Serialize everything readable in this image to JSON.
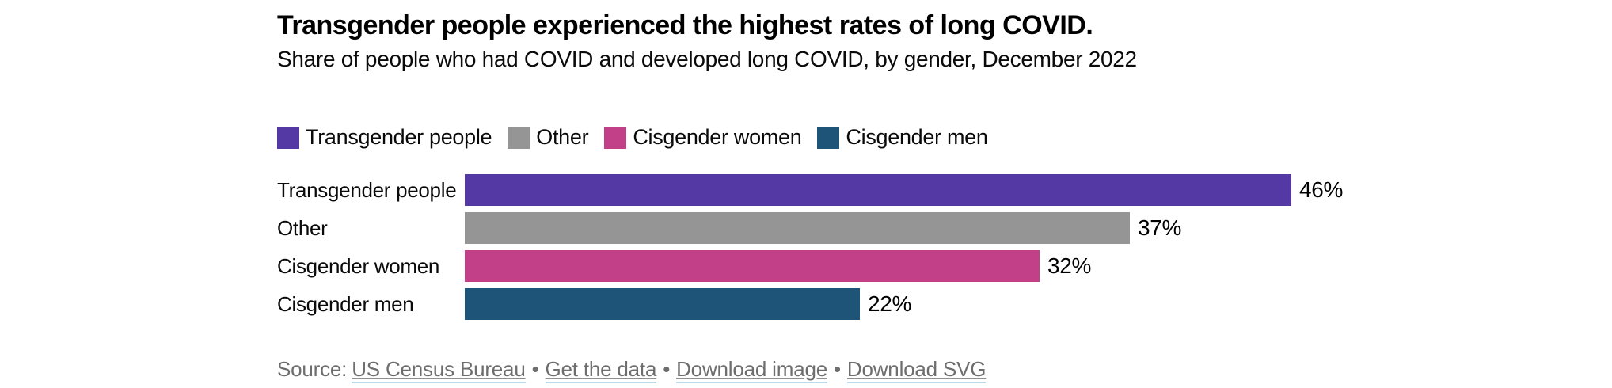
{
  "header": {
    "title": "Transgender people experienced the highest rates of long COVID.",
    "subtitle": "Share of people who had COVID and developed long COVID, by gender, December 2022"
  },
  "chart_data": {
    "type": "bar",
    "orientation": "horizontal",
    "title": "Transgender people experienced the highest rates of long COVID.",
    "subtitle": "Share of people who had COVID and developed long COVID, by gender, December 2022",
    "categories": [
      "Transgender people",
      "Other",
      "Cisgender women",
      "Cisgender men"
    ],
    "values": [
      46,
      37,
      32,
      22
    ],
    "value_labels": [
      "46%",
      "37%",
      "32%",
      "22%"
    ],
    "colors": [
      "#5439a5",
      "#959595",
      "#c14088",
      "#1e5478"
    ],
    "legend": {
      "position": "top",
      "entries": [
        "Transgender people",
        "Other",
        "Cisgender women",
        "Cisgender men"
      ]
    },
    "xlabel": "",
    "ylabel": "",
    "xlim": [
      0,
      46
    ],
    "grid": false,
    "unit": "%"
  },
  "footer": {
    "source_prefix": "Source:",
    "separator": "•",
    "links": [
      "US Census Bureau",
      "Get the data",
      "Download image",
      "Download SVG"
    ]
  },
  "style_colors": {
    "background": "#ffffff",
    "title_text": "#000000",
    "body_text": "#0a0a0a",
    "footer_text": "#6e6e6e",
    "link_underline": "#b9d9e9",
    "bar_purple": "#5439a5",
    "bar_gray": "#959595",
    "bar_magenta": "#c14088",
    "bar_blue": "#1e5478"
  }
}
